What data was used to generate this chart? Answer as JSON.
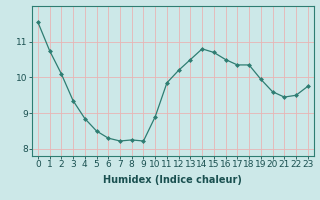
{
  "x": [
    0,
    1,
    2,
    3,
    4,
    5,
    6,
    7,
    8,
    9,
    10,
    11,
    12,
    13,
    14,
    15,
    16,
    17,
    18,
    19,
    20,
    21,
    22,
    23
  ],
  "y": [
    11.55,
    10.75,
    10.1,
    9.35,
    8.85,
    8.5,
    8.3,
    8.22,
    8.25,
    8.22,
    8.9,
    9.85,
    10.2,
    10.5,
    10.8,
    10.7,
    10.5,
    10.35,
    10.35,
    9.95,
    9.6,
    9.45,
    9.5,
    9.75
  ],
  "xlabel": "Humidex (Indice chaleur)",
  "ylim": [
    7.8,
    12.0
  ],
  "xlim": [
    -0.5,
    23.5
  ],
  "yticks": [
    8,
    9,
    10,
    11
  ],
  "xticks": [
    0,
    1,
    2,
    3,
    4,
    5,
    6,
    7,
    8,
    9,
    10,
    11,
    12,
    13,
    14,
    15,
    16,
    17,
    18,
    19,
    20,
    21,
    22,
    23
  ],
  "line_color": "#2e7d72",
  "marker": "D",
  "marker_size": 2,
  "bg_color": "#cce8e8",
  "grid_color": "#e8b4b4",
  "label_fontsize": 7,
  "tick_fontsize": 6.5
}
